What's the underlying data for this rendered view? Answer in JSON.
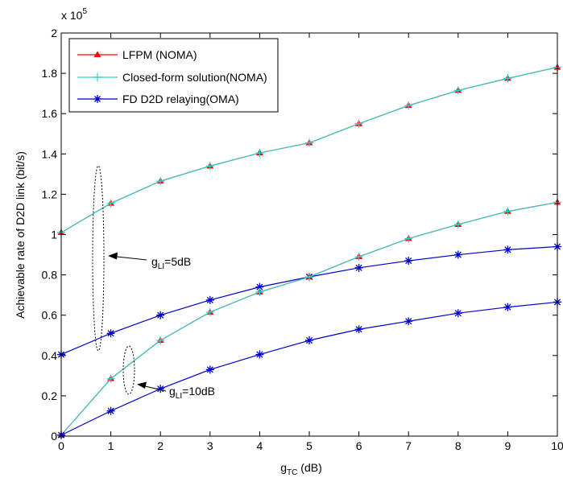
{
  "chart_data": {
    "type": "line",
    "xlabel": {
      "main": "g",
      "sub": "TC",
      "rest": " (dB)"
    },
    "ylabel": "Achievable rate of D2D link (bit/s)",
    "multiplier": {
      "base": "x 10",
      "exp": "5"
    },
    "x": [
      0,
      1,
      2,
      3,
      4,
      5,
      6,
      7,
      8,
      9,
      10
    ],
    "xlim": [
      0,
      10
    ],
    "ylim": [
      0,
      200000
    ],
    "xticks": [
      "0",
      "1",
      "2",
      "3",
      "4",
      "5",
      "6",
      "7",
      "8",
      "9",
      "10"
    ],
    "yticks": [
      "0",
      "0.2",
      "0.4",
      "0.6",
      "0.8",
      "1",
      "1.2",
      "1.4",
      "1.6",
      "1.8",
      "2"
    ],
    "ytick_values": [
      0,
      20000,
      40000,
      60000,
      80000,
      100000,
      120000,
      140000,
      160000,
      180000,
      200000
    ],
    "grid": false,
    "legend_position": "top-left",
    "legend": [
      {
        "label": "LFPM (NOMA)",
        "color": "#ff0000",
        "marker": "triangle"
      },
      {
        "label": "Closed-form solution(NOMA)",
        "color": "#33cccc",
        "marker": "plus"
      },
      {
        "label": "FD D2D relaying(OMA)",
        "color": "#0000cc",
        "marker": "asterisk"
      }
    ],
    "series": [
      {
        "group": "LFPM (NOMA)",
        "color": "#ff0000",
        "marker": "triangle",
        "values": [
          101000,
          115500,
          126500,
          134000,
          140500,
          145500,
          155000,
          164000,
          171500,
          177500,
          183000
        ]
      },
      {
        "group": "Closed-form solution(NOMA)",
        "color": "#33cccc",
        "marker": "plus",
        "values": [
          101000,
          115500,
          126500,
          134000,
          140500,
          145500,
          155000,
          164000,
          171500,
          177500,
          183000
        ]
      },
      {
        "group": "FD D2D relaying(OMA)",
        "color": "#0000cc",
        "marker": "asterisk",
        "values": [
          40500,
          51000,
          60000,
          67500,
          74000,
          79000,
          83500,
          87000,
          90000,
          92500,
          94000
        ]
      },
      {
        "group": "LFPM (NOMA)",
        "color": "#ff0000",
        "marker": "triangle",
        "values": [
          500,
          28500,
          47500,
          61500,
          71500,
          79000,
          89000,
          98000,
          105000,
          111500,
          116000
        ]
      },
      {
        "group": "Closed-form solution(NOMA)",
        "color": "#33cccc",
        "marker": "plus",
        "values": [
          500,
          28500,
          47500,
          61500,
          71500,
          79000,
          89000,
          98000,
          105000,
          111500,
          116000
        ]
      },
      {
        "group": "FD D2D relaying(OMA)",
        "color": "#0000cc",
        "marker": "asterisk",
        "values": [
          500,
          12500,
          23500,
          33000,
          40500,
          47500,
          53000,
          57000,
          61000,
          64000,
          66500
        ]
      }
    ],
    "annotations": [
      {
        "main": "g",
        "sub": "LI",
        "rest": "=5dB"
      },
      {
        "main": "g",
        "sub": "LI",
        "rest": "=10dB"
      }
    ]
  }
}
